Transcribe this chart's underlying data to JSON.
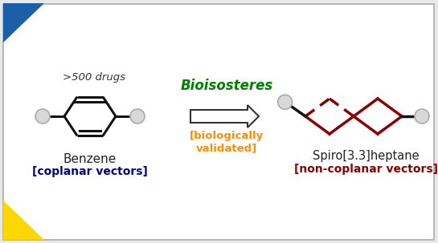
{
  "bg_color": "#e8e8e8",
  "inner_bg": "#ffffff",
  "title_bioisosteres": "Bioisosteres",
  "title_bio_color": "#008000",
  "subtitle_bio": "[biologically\nvalidated]",
  "subtitle_bio_color": "#ff8c00",
  "label_benzene": "Benzene",
  "label_benzene_sub": "[coplanar vectors]",
  "label_benzene_sub_color": "#00008B",
  "label_spiro": "Spiro[3.3]heptane",
  "label_spiro_sub": "[non-coplanar vectors]",
  "label_spiro_sub_color": "#8B0000",
  "label_drugs": ">500 drugs",
  "blue_triangle_color": "#1a5fa8",
  "yellow_triangle_color": "#FFD700",
  "spiro_color": "#8B0000",
  "benzene_color": "#111111",
  "attach_color": "#111111",
  "sphere_color_inner": "#d8d8d8",
  "sphere_color_outer": "#aaaaaa"
}
